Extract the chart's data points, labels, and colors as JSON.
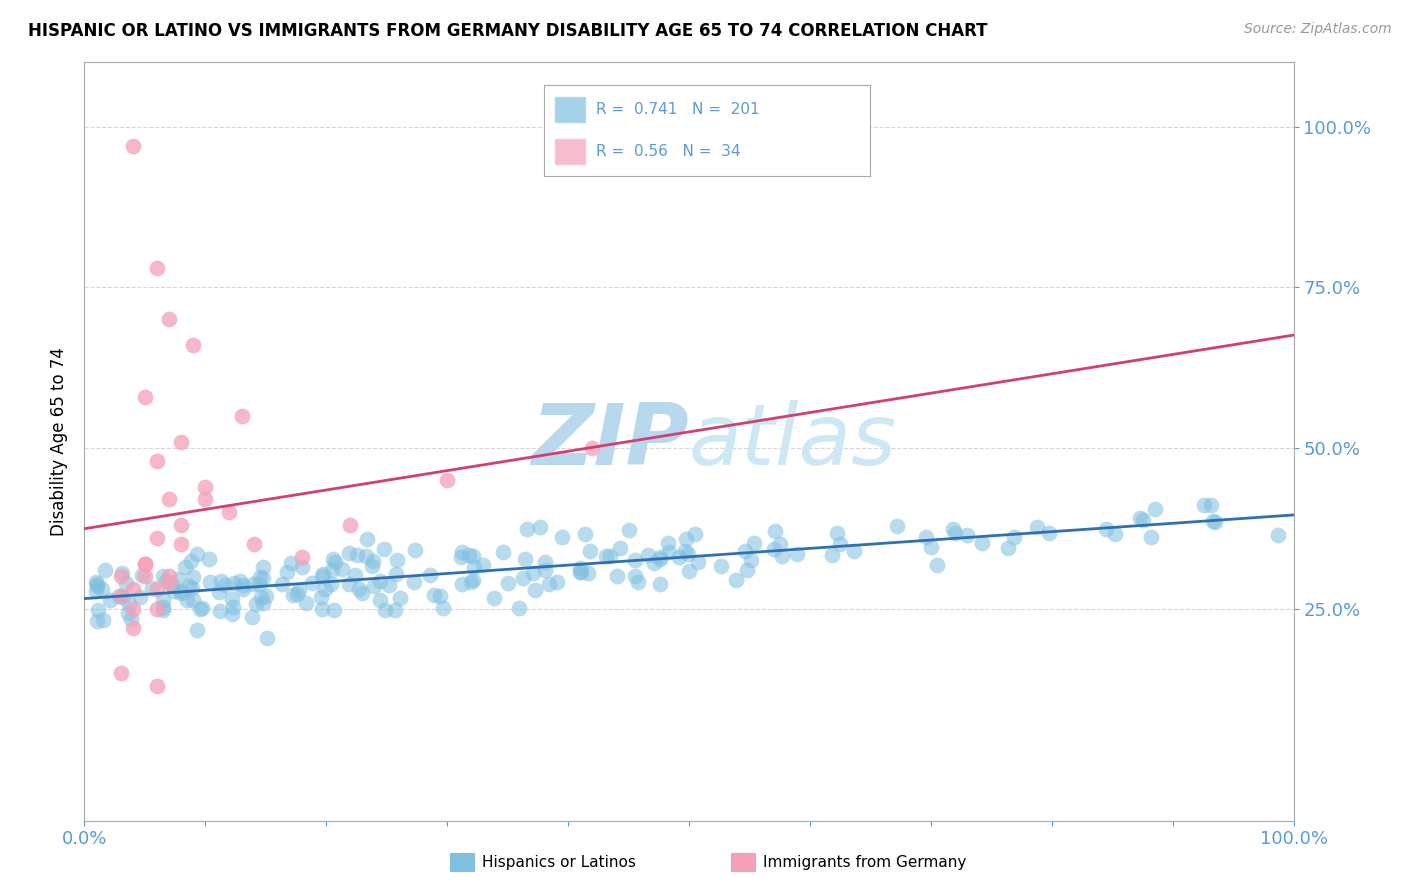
{
  "title": "HISPANIC OR LATINO VS IMMIGRANTS FROM GERMANY DISABILITY AGE 65 TO 74 CORRELATION CHART",
  "source": "Source: ZipAtlas.com",
  "ylabel": "Disability Age 65 to 74",
  "legend_label1": "Hispanics or Latinos",
  "legend_label2": "Immigrants from Germany",
  "R1": 0.741,
  "N1": 201,
  "R2": 0.56,
  "N2": 34,
  "color_blue": "#7fbfdf",
  "color_pink": "#f4a0b8",
  "color_line_blue": "#3070b0",
  "color_line_pink": "#d04070",
  "color_axis_label": "#5b9bd5",
  "color_grid": "#cccccc",
  "watermark_color": "#cce4f4",
  "xlim": [
    0.0,
    1.0
  ],
  "ylim": [
    -0.08,
    1.1
  ]
}
